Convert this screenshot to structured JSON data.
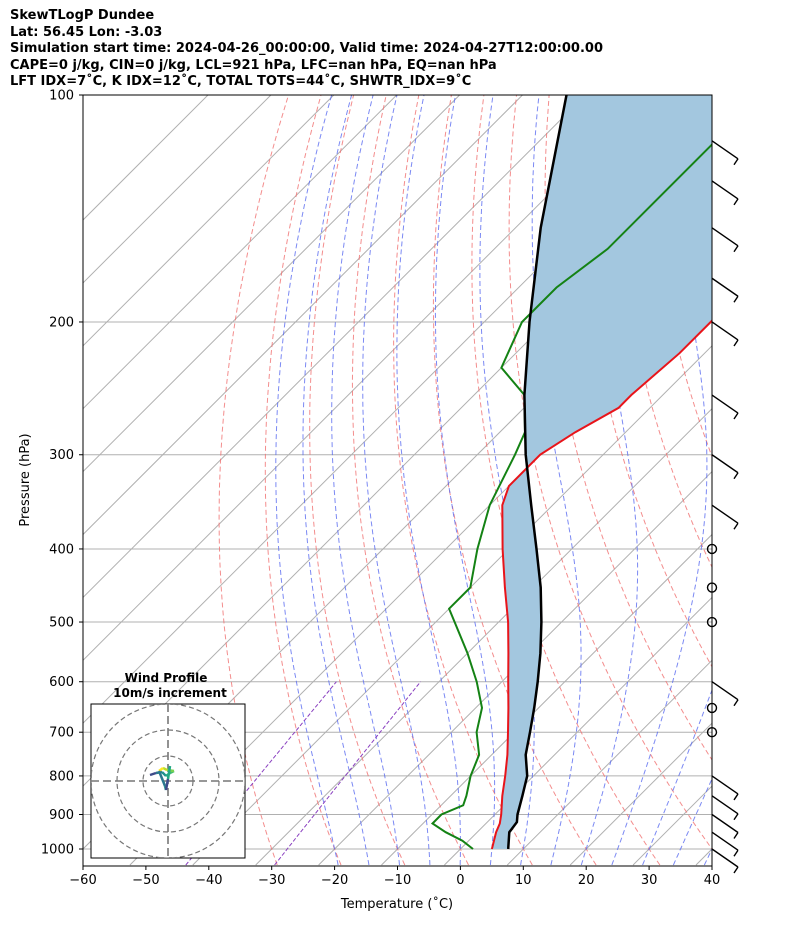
{
  "header": {
    "title": "SkewTLogP Dundee",
    "location": "Lat: 56.45   Lon: -3.03",
    "times": "Simulation start time: 2024-04-26_00:00:00, Valid time: 2024-04-27T12:00:00.00",
    "params": "CAPE=0 j/kg, CIN=0 j/kg, LCL=921 hPa, LFC=nan hPa, EQ=nan hPa",
    "indices": "LFT IDX=7˚C, K IDX=12˚C, TOTAL TOTS=44˚C, SHWTR_IDX=9˚C"
  },
  "colors": {
    "temperature": "#e8141a",
    "dewpoint": "#148214",
    "parcel": "#000000",
    "shade": "#a3c7df",
    "dry_adiabats": "#f07070",
    "moist_adiabats": "#5a6cf0",
    "mixing_ratio": "#8a40c0",
    "isotherms": "#b0b0b0"
  },
  "chart_data": {
    "type": "line",
    "title": "",
    "xlabel": "Temperature (˚C)",
    "ylabel": "Pressure (hPa)",
    "xlim": [
      -60,
      40
    ],
    "ylim": [
      1050,
      100
    ],
    "y_scale": "log",
    "grid": true,
    "x_ticks": [
      "−60",
      "−50",
      "−40",
      "−30",
      "−20",
      "−10",
      "0",
      "10",
      "20",
      "30",
      "40"
    ],
    "y_ticks": [
      "100",
      "200",
      "300",
      "400",
      "500",
      "600",
      "700",
      "800",
      "900",
      "1000"
    ],
    "skew": "skew-T (isotherms slanted 45°)",
    "series": [
      {
        "p": [
          1000,
          950,
          925,
          900,
          850,
          800,
          750,
          700,
          650,
          600,
          550,
          500,
          450,
          400,
          350,
          330,
          300,
          280,
          260,
          250,
          220,
          200,
          180,
          160,
          140,
          120,
          100
        ],
        "t": [
          5,
          3,
          2.2,
          1,
          -1.8,
          -4.5,
          -7.5,
          -11,
          -14.8,
          -19,
          -23.5,
          -28.5,
          -34.5,
          -41,
          -48,
          -50,
          -50,
          -48,
          -45,
          -45,
          -44,
          -44,
          -44,
          -44,
          -44,
          -44,
          -44
        ]
      },
      {
        "p": [
          1000,
          975,
          950,
          925,
          900,
          875,
          850,
          800,
          750,
          700,
          650,
          600,
          550,
          500,
          480,
          450,
          400,
          350,
          300,
          280,
          250,
          230,
          200,
          180,
          160,
          140,
          120,
          100
        ],
        "t": [
          2,
          -1,
          -5,
          -8.5,
          -8.5,
          -6.5,
          -7.5,
          -10,
          -12,
          -16,
          -19,
          -24,
          -30,
          -37,
          -40,
          -40,
          -45,
          -50,
          -54,
          -56,
          -62,
          -70,
          -74,
          -74,
          -72,
          -72,
          -72,
          -72
        ]
      },
      {
        "p": [
          1000,
          950,
          921,
          900,
          850,
          800,
          750,
          700,
          650,
          600,
          550,
          500,
          450,
          400,
          350,
          300,
          250,
          200,
          150,
          100
        ],
        "t": [
          7.6,
          5.1,
          4.7,
          3.6,
          1.4,
          -1.0,
          -4.6,
          -7.5,
          -10.7,
          -14.3,
          -18.4,
          -23.2,
          -28.8,
          -35.6,
          -43.4,
          -52.3,
          -62,
          -72.8,
          -86,
          -103
        ]
      }
    ],
    "wind_barbs": [
      {
        "p": 1000,
        "type": "barb"
      },
      {
        "p": 950,
        "type": "barb"
      },
      {
        "p": 900,
        "type": "barb"
      },
      {
        "p": 850,
        "type": "barb"
      },
      {
        "p": 800,
        "type": "barb"
      },
      {
        "p": 700,
        "type": "calm"
      },
      {
        "p": 650,
        "type": "calm"
      },
      {
        "p": 600,
        "type": "barb"
      },
      {
        "p": 500,
        "type": "calm"
      },
      {
        "p": 450,
        "type": "calm"
      },
      {
        "p": 400,
        "type": "calm"
      },
      {
        "p": 350,
        "type": "barb"
      },
      {
        "p": 300,
        "type": "barb"
      },
      {
        "p": 250,
        "type": "barb"
      },
      {
        "p": 200,
        "type": "barb"
      },
      {
        "p": 175,
        "type": "barb"
      },
      {
        "p": 150,
        "type": "barb"
      },
      {
        "p": 130,
        "type": "barb"
      },
      {
        "p": 115,
        "type": "barb"
      }
    ]
  },
  "inset": {
    "title": "Wind Profile",
    "subtitle": "10m/s increment"
  }
}
